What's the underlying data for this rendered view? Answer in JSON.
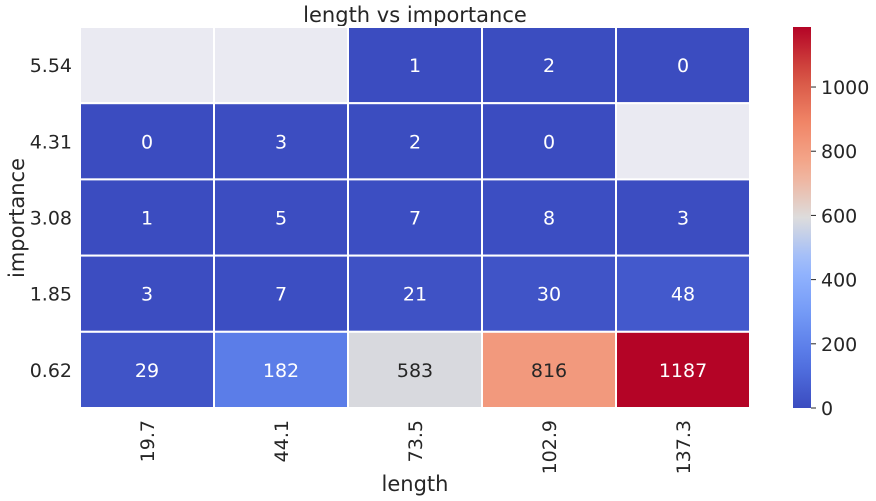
{
  "chart_data": {
    "type": "heatmap",
    "title": "length vs importance",
    "xlabel": "length",
    "ylabel": "importance",
    "x_categories": [
      "19.7",
      "44.1",
      "73.5",
      "102.9",
      "137.3"
    ],
    "y_categories": [
      "5.54",
      "4.31",
      "3.08",
      "1.85",
      "0.62"
    ],
    "values": [
      [
        null,
        null,
        1,
        2,
        0
      ],
      [
        0,
        3,
        2,
        0,
        null
      ],
      [
        1,
        5,
        7,
        8,
        3
      ],
      [
        3,
        7,
        21,
        30,
        48
      ],
      [
        29,
        182,
        583,
        816,
        1187
      ]
    ],
    "colormap": "coolwarm",
    "vmin": 0,
    "vmax": 1187,
    "missing_color": "#eaeaf2",
    "colorbar_ticks": [
      0,
      200,
      400,
      600,
      800,
      1000
    ]
  }
}
